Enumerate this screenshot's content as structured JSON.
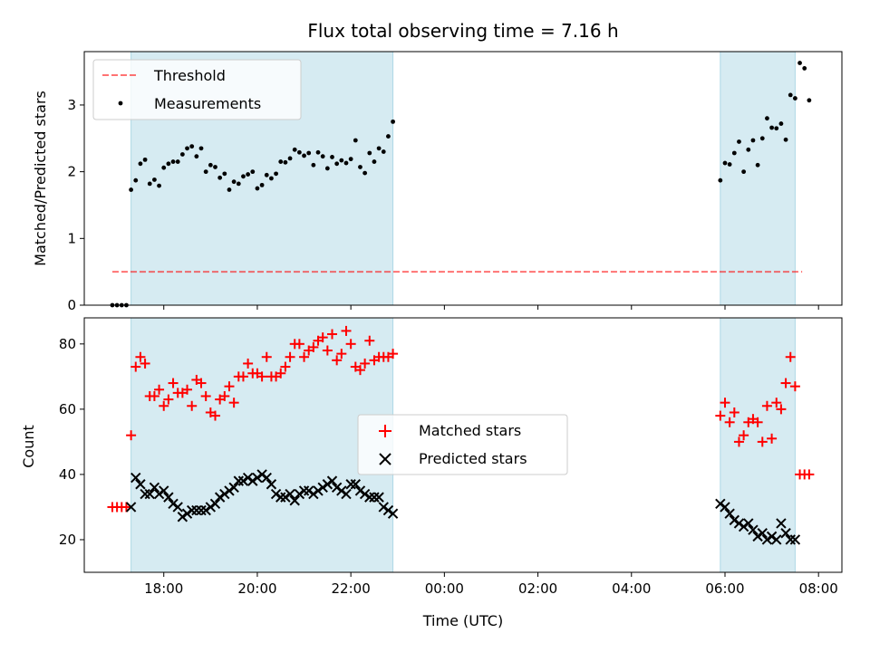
{
  "title": "Flux total observing time = 7.16 h",
  "colors": {
    "span": "#add8e6",
    "threshold": "#ff0000",
    "measurement": "#000000",
    "matched": "#ff0000",
    "predicted": "#000000"
  },
  "chart_data": [
    {
      "type": "scatter",
      "ylabel": "Matched/Predicted stars",
      "xlabel": "",
      "xlim": [
        16.3,
        32.5
      ],
      "ylim": [
        0,
        3.8
      ],
      "yticks": [
        0,
        1,
        2,
        3
      ],
      "grid": false,
      "legend_position": "top-left",
      "shaded_spans": [
        [
          17.3,
          22.9
        ],
        [
          29.9,
          31.5
        ]
      ],
      "threshold": {
        "name": "Threshold",
        "y": 0.5,
        "x": [
          16.9,
          31.65
        ],
        "style": "dashed"
      },
      "series": [
        {
          "name": "Measurements",
          "marker": "dot",
          "x": [
            16.9,
            17.0,
            17.1,
            17.2,
            17.3,
            17.4,
            17.5,
            17.6,
            17.7,
            17.8,
            17.9,
            18.0,
            18.1,
            18.2,
            18.3,
            18.4,
            18.5,
            18.6,
            18.7,
            18.8,
            18.9,
            19.0,
            19.1,
            19.2,
            19.3,
            19.4,
            19.5,
            19.6,
            19.7,
            19.8,
            19.9,
            20.0,
            20.1,
            20.2,
            20.3,
            20.4,
            20.5,
            20.6,
            20.7,
            20.8,
            20.9,
            21.0,
            21.1,
            21.2,
            21.3,
            21.4,
            21.5,
            21.6,
            21.7,
            21.8,
            21.9,
            22.0,
            22.1,
            22.2,
            22.3,
            22.4,
            22.5,
            22.6,
            22.7,
            22.8,
            22.9,
            29.9,
            30.0,
            30.1,
            30.2,
            30.3,
            30.4,
            30.5,
            30.6,
            30.7,
            30.8,
            30.9,
            31.0,
            31.1,
            31.2,
            31.3,
            31.4,
            31.5,
            31.6,
            31.7,
            31.8
          ],
          "y": [
            0,
            0,
            0,
            0,
            1.73,
            1.87,
            2.12,
            2.18,
            1.82,
            1.88,
            1.79,
            2.06,
            2.12,
            2.15,
            2.15,
            2.26,
            2.35,
            2.38,
            2.23,
            2.35,
            2.0,
            2.1,
            2.07,
            1.91,
            1.97,
            1.73,
            1.85,
            1.82,
            1.93,
            1.96,
            2.0,
            1.75,
            1.8,
            1.95,
            1.9,
            1.97,
            2.15,
            2.14,
            2.2,
            2.33,
            2.29,
            2.24,
            2.28,
            2.1,
            2.29,
            2.23,
            2.05,
            2.22,
            2.12,
            2.17,
            2.13,
            2.19,
            2.47,
            2.07,
            1.98,
            2.28,
            2.15,
            2.35,
            2.3,
            2.53,
            2.75,
            1.87,
            2.13,
            2.11,
            2.28,
            2.45,
            2.0,
            2.33,
            2.47,
            2.1,
            2.5,
            2.8,
            2.66,
            2.65,
            2.72,
            2.48,
            3.15,
            3.1,
            3.63,
            3.55,
            3.07
          ]
        }
      ]
    },
    {
      "type": "scatter",
      "ylabel": "Count",
      "xlabel": "Time (UTC)",
      "xlim": [
        16.3,
        32.5
      ],
      "ylim": [
        10,
        88
      ],
      "yticks": [
        20,
        40,
        60,
        80
      ],
      "xticks": [
        18,
        20,
        22,
        24,
        26,
        28,
        30,
        32
      ],
      "xtick_labels": [
        "18:00",
        "20:00",
        "22:00",
        "00:00",
        "02:00",
        "04:00",
        "06:00",
        "08:00"
      ],
      "grid": false,
      "legend_position": "center",
      "shaded_spans": [
        [
          17.3,
          22.9
        ],
        [
          29.9,
          31.5
        ]
      ],
      "series": [
        {
          "name": "Matched stars",
          "marker": "plus",
          "x": [
            16.9,
            17.0,
            17.1,
            17.2,
            17.3,
            17.4,
            17.5,
            17.6,
            17.7,
            17.8,
            17.9,
            18.0,
            18.1,
            18.2,
            18.3,
            18.4,
            18.5,
            18.6,
            18.7,
            18.8,
            18.9,
            19.0,
            19.1,
            19.2,
            19.3,
            19.4,
            19.5,
            19.6,
            19.7,
            19.8,
            19.9,
            20.0,
            20.1,
            20.2,
            20.3,
            20.4,
            20.5,
            20.6,
            20.7,
            20.8,
            20.9,
            21.0,
            21.1,
            21.2,
            21.3,
            21.4,
            21.5,
            21.6,
            21.7,
            21.8,
            21.9,
            22.0,
            22.1,
            22.2,
            22.3,
            22.4,
            22.5,
            22.6,
            22.7,
            22.8,
            22.9,
            29.9,
            30.0,
            30.1,
            30.2,
            30.3,
            30.4,
            30.5,
            30.6,
            30.7,
            30.8,
            30.9,
            31.0,
            31.1,
            31.2,
            31.3,
            31.4,
            31.5,
            31.6,
            31.7,
            31.8
          ],
          "y": [
            30,
            30,
            30,
            30,
            52,
            73,
            76,
            74,
            64,
            64,
            66,
            61,
            63,
            68,
            65,
            65,
            66,
            61,
            69,
            68,
            64,
            59,
            58,
            63,
            64,
            67,
            62,
            70,
            70,
            74,
            71,
            71,
            70,
            76,
            70,
            70,
            71,
            73,
            76,
            80,
            80,
            76,
            78,
            79,
            81,
            82,
            78,
            83,
            75,
            77,
            84,
            80,
            73,
            72,
            74,
            81,
            75,
            76,
            76,
            76,
            77,
            58,
            62,
            56,
            59,
            50,
            52,
            56,
            57,
            56,
            50,
            61,
            51,
            62,
            60,
            68,
            76,
            67,
            40,
            40,
            40
          ]
        },
        {
          "name": "Predicted stars",
          "marker": "x",
          "x": [
            17.3,
            17.4,
            17.5,
            17.6,
            17.7,
            17.8,
            17.9,
            18.0,
            18.1,
            18.2,
            18.3,
            18.4,
            18.5,
            18.6,
            18.7,
            18.8,
            18.9,
            19.0,
            19.1,
            19.2,
            19.3,
            19.4,
            19.5,
            19.6,
            19.7,
            19.8,
            19.9,
            20.0,
            20.1,
            20.2,
            20.3,
            20.4,
            20.5,
            20.6,
            20.7,
            20.8,
            20.9,
            21.0,
            21.1,
            21.2,
            21.3,
            21.4,
            21.5,
            21.6,
            21.7,
            21.8,
            21.9,
            22.0,
            22.1,
            22.2,
            22.3,
            22.4,
            22.5,
            22.6,
            22.7,
            22.8,
            22.9,
            29.9,
            30.0,
            30.1,
            30.2,
            30.3,
            30.4,
            30.5,
            30.6,
            30.7,
            30.8,
            30.9,
            31.0,
            31.1,
            31.2,
            31.3,
            31.4,
            31.5
          ],
          "y": [
            30,
            39,
            37,
            34,
            34,
            36,
            34,
            35,
            33,
            31,
            30,
            27,
            28,
            29,
            29,
            29,
            29,
            30,
            31,
            33,
            34,
            35,
            36,
            38,
            38,
            39,
            38,
            39,
            40,
            39,
            37,
            34,
            33,
            33,
            34,
            32,
            34,
            35,
            35,
            34,
            35,
            36,
            37,
            38,
            36,
            35,
            34,
            37,
            37,
            35,
            34,
            33,
            33,
            33,
            30,
            29,
            28,
            31,
            30,
            28,
            26,
            25,
            24,
            25,
            23,
            21,
            22,
            20,
            21,
            20,
            25,
            22,
            20,
            20
          ]
        }
      ]
    }
  ]
}
